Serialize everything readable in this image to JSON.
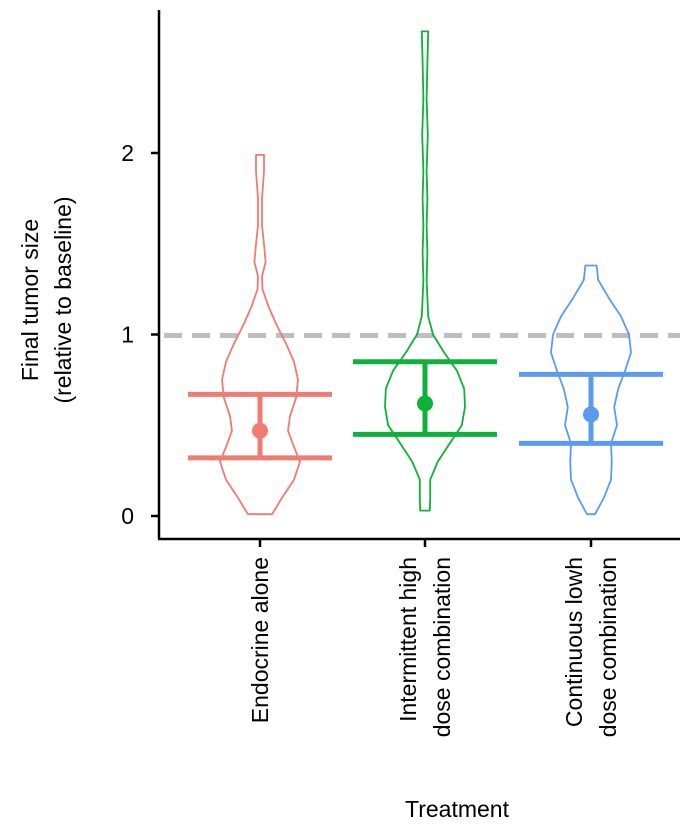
{
  "chart_data": {
    "type": "violin",
    "title": "",
    "xlabel": "Treatment",
    "ylabel_lines": [
      "Final tumor size",
      "(relative to baseline)"
    ],
    "ylim": [
      0,
      2.7
    ],
    "yticks": [
      0,
      1,
      2
    ],
    "grid": false,
    "reference_line": {
      "y": 1,
      "style": "dashed",
      "color": "#bfbfbf"
    },
    "categories": [
      {
        "lines": [
          "Endocrine alone"
        ],
        "color": "#f07b72",
        "median": 0.47,
        "lower": 0.32,
        "upper": 0.67,
        "range": [
          0.01,
          1.99
        ],
        "density": [
          [
            0.01,
            0.3
          ],
          [
            0.1,
            0.55
          ],
          [
            0.2,
            0.85
          ],
          [
            0.3,
            1.0
          ],
          [
            0.38,
            0.85
          ],
          [
            0.47,
            0.7
          ],
          [
            0.55,
            0.75
          ],
          [
            0.65,
            0.9
          ],
          [
            0.75,
            0.95
          ],
          [
            0.85,
            0.85
          ],
          [
            0.95,
            0.65
          ],
          [
            1.05,
            0.42
          ],
          [
            1.15,
            0.22
          ],
          [
            1.25,
            0.06
          ],
          [
            1.32,
            0.05
          ],
          [
            1.4,
            0.14
          ],
          [
            1.5,
            0.1
          ],
          [
            1.6,
            0.05
          ],
          [
            1.75,
            0.05
          ],
          [
            1.9,
            0.1
          ],
          [
            1.99,
            0.1
          ]
        ]
      },
      {
        "lines": [
          "Intermittent  high",
          "dose combination"
        ],
        "color": "#0eb13a",
        "median": 0.62,
        "lower": 0.45,
        "upper": 0.85,
        "range": [
          0.03,
          2.67
        ],
        "density": [
          [
            0.03,
            0.12
          ],
          [
            0.1,
            0.13
          ],
          [
            0.2,
            0.13
          ],
          [
            0.3,
            0.32
          ],
          [
            0.4,
            0.62
          ],
          [
            0.5,
            0.92
          ],
          [
            0.6,
            1.0
          ],
          [
            0.7,
            0.98
          ],
          [
            0.8,
            0.8
          ],
          [
            0.9,
            0.48
          ],
          [
            1.0,
            0.2
          ],
          [
            1.1,
            0.08
          ],
          [
            1.3,
            0.04
          ],
          [
            1.45,
            0.06
          ],
          [
            1.6,
            0.04
          ],
          [
            1.75,
            0.06
          ],
          [
            1.9,
            0.04
          ],
          [
            2.1,
            0.07
          ],
          [
            2.3,
            0.04
          ],
          [
            2.5,
            0.06
          ],
          [
            2.67,
            0.08
          ]
        ]
      },
      {
        "lines": [
          "Continuous lowh",
          "dose combination"
        ],
        "color": "#5b9bef",
        "median": 0.56,
        "lower": 0.4,
        "upper": 0.78,
        "range": [
          0.01,
          1.38
        ],
        "density": [
          [
            0.01,
            0.1
          ],
          [
            0.1,
            0.32
          ],
          [
            0.2,
            0.5
          ],
          [
            0.3,
            0.52
          ],
          [
            0.4,
            0.5
          ],
          [
            0.5,
            0.65
          ],
          [
            0.6,
            0.58
          ],
          [
            0.7,
            0.68
          ],
          [
            0.8,
            0.85
          ],
          [
            0.9,
            1.0
          ],
          [
            1.0,
            0.95
          ],
          [
            1.1,
            0.75
          ],
          [
            1.2,
            0.45
          ],
          [
            1.3,
            0.18
          ],
          [
            1.38,
            0.14
          ]
        ]
      }
    ]
  }
}
